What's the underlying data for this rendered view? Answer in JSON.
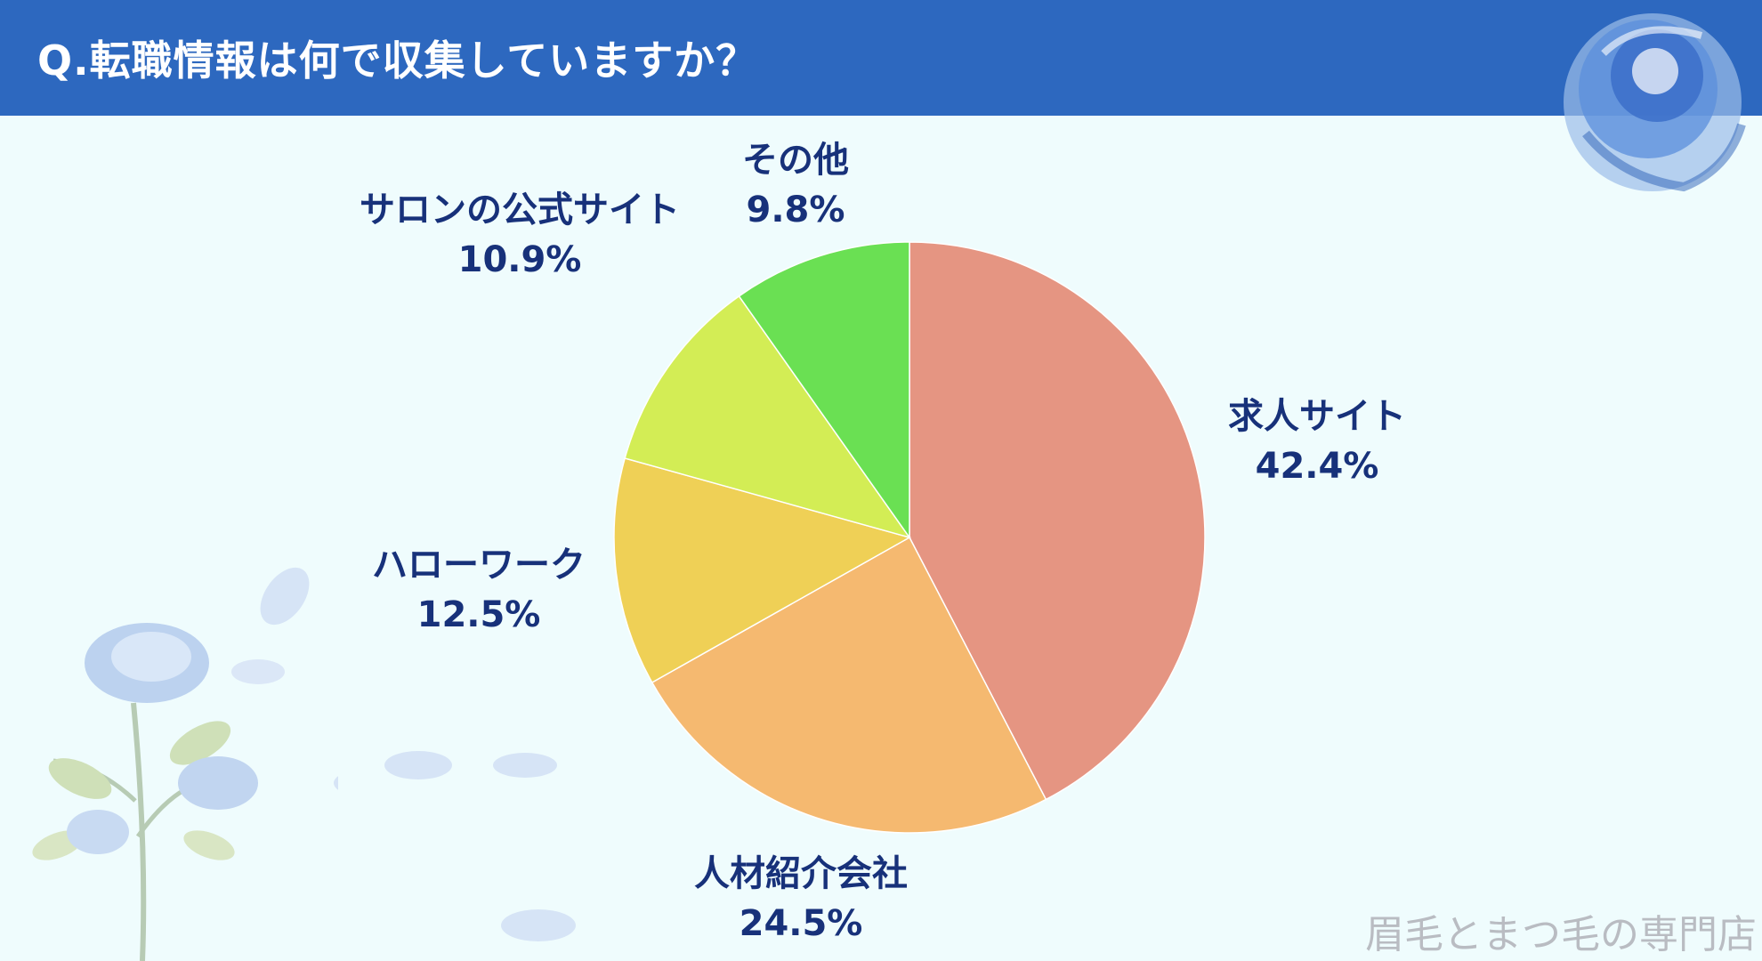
{
  "header": {
    "title": "Q.転職情報は何で収集していますか？"
  },
  "watermark": "眉毛とまつ毛の専門店",
  "chart_data": {
    "type": "pie",
    "title": "Q.転職情報は何で収集していますか？",
    "slices": [
      {
        "label": "求人サイト",
        "value": 42.4,
        "value_label": "42.4%",
        "color": "#e59582"
      },
      {
        "label": "人材紹介会社",
        "value": 24.5,
        "value_label": "24.5%",
        "color": "#f5b970"
      },
      {
        "label": "ハローワーク",
        "value": 12.5,
        "value_label": "12.5%",
        "color": "#efd056"
      },
      {
        "label": "サロンの公式サイト",
        "value": 10.9,
        "value_label": "10.9%",
        "color": "#d3ed55"
      },
      {
        "label": "その他",
        "value": 9.8,
        "value_label": "9.8%",
        "color": "#6ae053"
      }
    ],
    "start_angle": "12 o'clock",
    "direction": "clockwise",
    "legend": "none"
  },
  "colors": {
    "header_bg": "#2d68bf",
    "background": "#effcfd",
    "label_text": "#17317a"
  }
}
